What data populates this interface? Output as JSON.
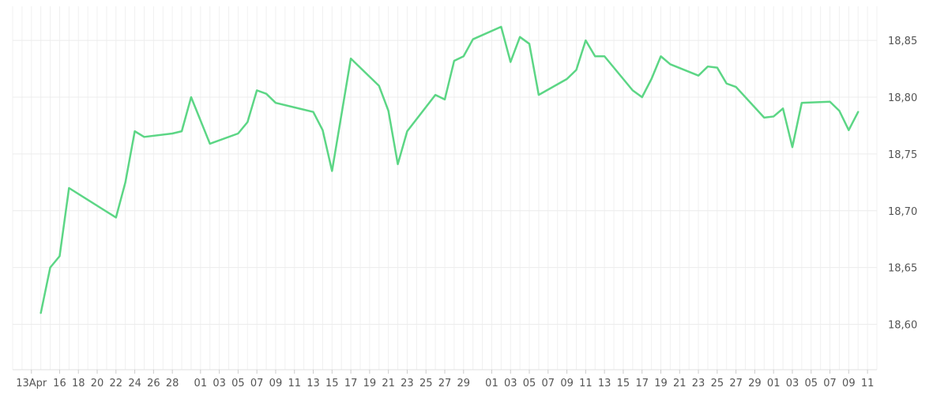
{
  "chart_data": {
    "type": "line",
    "title": "",
    "xlabel": "",
    "ylabel": "",
    "ylim": [
      18.56,
      18.88
    ],
    "y_ticks": [
      "18,60",
      "18,65",
      "18,70",
      "18,75",
      "18,80",
      "18,85"
    ],
    "y_tick_values": [
      18.6,
      18.65,
      18.7,
      18.75,
      18.8,
      18.85
    ],
    "x_start": "2020-04-11",
    "x_end": "2020-06-12",
    "x_tick_dates": [
      "2020-04-13",
      "2020-04-16",
      "2020-04-18",
      "2020-04-20",
      "2020-04-22",
      "2020-04-24",
      "2020-04-26",
      "2020-04-28",
      "2020-05-01",
      "2020-05-03",
      "2020-05-05",
      "2020-05-07",
      "2020-05-09",
      "2020-05-11",
      "2020-05-13",
      "2020-05-15",
      "2020-05-17",
      "2020-05-19",
      "2020-05-21",
      "2020-05-23",
      "2020-05-25",
      "2020-05-27",
      "2020-05-29",
      "2020-06-01",
      "2020-06-03",
      "2020-06-05",
      "2020-06-07",
      "2020-06-09",
      "2020-06-11",
      "2020-06-13",
      "2020-06-15",
      "2020-06-17",
      "2020-06-19",
      "2020-06-21",
      "2020-06-23",
      "2020-06-25",
      "2020-06-27",
      "2020-06-29",
      "2020-07-01",
      "2020-07-03",
      "2020-07-05",
      "2020-07-07",
      "2020-07-09",
      "2020-07-11"
    ],
    "x_tick_labels": [
      "13Apr",
      "16",
      "18",
      "20",
      "22",
      "24",
      "26",
      "28",
      "01",
      "03",
      "05",
      "07",
      "09",
      "11",
      "13",
      "15",
      "17",
      "19",
      "21",
      "23",
      "25",
      "27",
      "29",
      "01",
      "03",
      "05",
      "07",
      "09",
      "11",
      "13",
      "15",
      "17",
      "19",
      "21",
      "23",
      "25",
      "27",
      "29",
      "01",
      "03",
      "05",
      "07",
      "09",
      "11"
    ],
    "series": [
      {
        "name": "",
        "color": "#5cd685",
        "x": [
          "2020-04-14",
          "2020-04-15",
          "2020-04-16",
          "2020-04-17",
          "2020-04-22",
          "2020-04-23",
          "2020-04-24",
          "2020-04-25",
          "2020-04-28",
          "2020-04-29",
          "2020-04-30",
          "2020-05-02",
          "2020-05-05",
          "2020-05-06",
          "2020-05-07",
          "2020-05-08",
          "2020-05-09",
          "2020-05-13",
          "2020-05-14",
          "2020-05-15",
          "2020-05-17",
          "2020-05-20",
          "2020-05-21",
          "2020-05-22",
          "2020-05-23",
          "2020-05-26",
          "2020-05-27",
          "2020-05-28",
          "2020-05-29",
          "2020-05-30",
          "2020-06-02",
          "2020-06-03",
          "2020-06-04",
          "2020-06-05",
          "2020-06-06",
          "2020-06-09",
          "2020-06-10",
          "2020-06-11",
          "2020-06-12",
          "2020-06-13",
          "2020-06-16",
          "2020-06-17",
          "2020-06-18",
          "2020-06-19",
          "2020-06-20",
          "2020-06-23",
          "2020-06-24",
          "2020-06-25",
          "2020-06-26",
          "2020-06-27",
          "2020-06-30",
          "2020-07-01",
          "2020-07-02",
          "2020-07-03",
          "2020-07-04",
          "2020-07-07",
          "2020-07-08",
          "2020-07-09",
          "2020-07-10"
        ],
        "y": [
          18.61,
          18.65,
          18.66,
          18.72,
          18.694,
          18.725,
          18.77,
          18.765,
          18.768,
          18.77,
          18.8,
          18.759,
          18.768,
          18.778,
          18.806,
          18.803,
          18.795,
          18.787,
          18.771,
          18.735,
          18.834,
          18.81,
          18.788,
          18.741,
          18.77,
          18.802,
          18.798,
          18.832,
          18.836,
          18.851,
          18.862,
          18.831,
          18.853,
          18.847,
          18.802,
          18.816,
          18.824,
          18.85,
          18.836,
          18.836,
          18.806,
          18.8,
          18.816,
          18.836,
          18.829,
          18.819,
          18.827,
          18.826,
          18.812,
          18.809,
          18.782,
          18.783,
          18.79,
          18.756,
          18.795,
          18.796,
          18.788,
          18.771,
          18.787
        ]
      }
    ],
    "grid": true,
    "legend": "none"
  }
}
